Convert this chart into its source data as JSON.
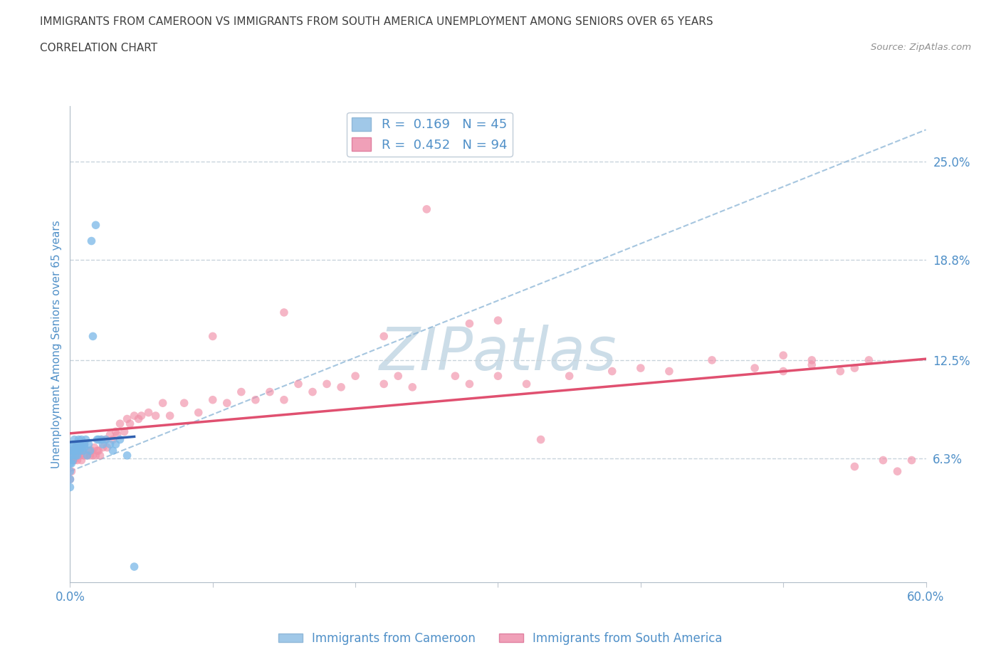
{
  "title_line1": "IMMIGRANTS FROM CAMEROON VS IMMIGRANTS FROM SOUTH AMERICA UNEMPLOYMENT AMONG SENIORS OVER 65 YEARS",
  "title_line2": "CORRELATION CHART",
  "source": "Source: ZipAtlas.com",
  "ylabel": "Unemployment Among Seniors over 65 years",
  "xlim": [
    0.0,
    0.6
  ],
  "ylim": [
    -0.015,
    0.285
  ],
  "ytick_right_vals": [
    0.063,
    0.125,
    0.188,
    0.25
  ],
  "ytick_right_labels": [
    "6.3%",
    "12.5%",
    "18.8%",
    "25.0%"
  ],
  "watermark_color": "#ccdde8",
  "blue_color": "#7ab8e8",
  "pink_color": "#f090a8",
  "blue_line_color": "#3060b0",
  "pink_line_color": "#e05070",
  "dashed_line_color": "#90b8d8",
  "grid_color": "#c8d4dc",
  "background_color": "#ffffff",
  "title_color": "#404040",
  "tick_label_color": "#5090c8",
  "legend_r1": "R =  0.169   N = 45",
  "legend_r2": "R =  0.452   N = 94",
  "legend_color1": "#a0c8e8",
  "legend_color2": "#f0a0b8",
  "cam_scatter_x": [
    0.0,
    0.0,
    0.0,
    0.0,
    0.0,
    0.001,
    0.001,
    0.001,
    0.002,
    0.002,
    0.002,
    0.003,
    0.003,
    0.004,
    0.004,
    0.005,
    0.005,
    0.005,
    0.006,
    0.006,
    0.007,
    0.007,
    0.008,
    0.008,
    0.009,
    0.01,
    0.01,
    0.011,
    0.012,
    0.013,
    0.014,
    0.015,
    0.016,
    0.018,
    0.019,
    0.02,
    0.022,
    0.023,
    0.025,
    0.028,
    0.03,
    0.032,
    0.035,
    0.04,
    0.045
  ],
  "cam_scatter_y": [
    0.05,
    0.06,
    0.065,
    0.055,
    0.045,
    0.065,
    0.07,
    0.06,
    0.068,
    0.072,
    0.062,
    0.068,
    0.075,
    0.065,
    0.07,
    0.065,
    0.072,
    0.068,
    0.07,
    0.075,
    0.068,
    0.072,
    0.07,
    0.075,
    0.068,
    0.072,
    0.07,
    0.075,
    0.065,
    0.072,
    0.068,
    0.2,
    0.14,
    0.21,
    0.075,
    0.075,
    0.075,
    0.072,
    0.075,
    0.072,
    0.068,
    0.072,
    0.075,
    0.065,
    -0.005
  ],
  "sa_scatter_x": [
    0.0,
    0.0,
    0.0,
    0.001,
    0.001,
    0.002,
    0.002,
    0.003,
    0.003,
    0.004,
    0.004,
    0.005,
    0.005,
    0.006,
    0.006,
    0.007,
    0.007,
    0.008,
    0.009,
    0.01,
    0.01,
    0.012,
    0.013,
    0.014,
    0.015,
    0.016,
    0.017,
    0.018,
    0.019,
    0.02,
    0.021,
    0.022,
    0.023,
    0.025,
    0.026,
    0.028,
    0.03,
    0.032,
    0.033,
    0.035,
    0.038,
    0.04,
    0.042,
    0.045,
    0.048,
    0.05,
    0.055,
    0.06,
    0.065,
    0.07,
    0.08,
    0.09,
    0.1,
    0.11,
    0.12,
    0.13,
    0.14,
    0.15,
    0.16,
    0.17,
    0.18,
    0.19,
    0.2,
    0.22,
    0.23,
    0.24,
    0.25,
    0.27,
    0.28,
    0.3,
    0.32,
    0.35,
    0.38,
    0.4,
    0.42,
    0.45,
    0.48,
    0.5,
    0.52,
    0.54,
    0.55,
    0.56,
    0.57,
    0.58,
    0.59,
    0.28,
    0.3,
    0.1,
    0.15,
    0.22,
    0.5,
    0.52,
    0.55,
    0.33
  ],
  "sa_scatter_y": [
    0.05,
    0.062,
    0.068,
    0.055,
    0.065,
    0.062,
    0.068,
    0.062,
    0.068,
    0.065,
    0.07,
    0.062,
    0.068,
    0.065,
    0.072,
    0.065,
    0.068,
    0.062,
    0.068,
    0.065,
    0.072,
    0.065,
    0.068,
    0.065,
    0.068,
    0.065,
    0.07,
    0.065,
    0.068,
    0.068,
    0.065,
    0.075,
    0.07,
    0.075,
    0.07,
    0.078,
    0.075,
    0.08,
    0.078,
    0.085,
    0.08,
    0.088,
    0.085,
    0.09,
    0.088,
    0.09,
    0.092,
    0.09,
    0.098,
    0.09,
    0.098,
    0.092,
    0.1,
    0.098,
    0.105,
    0.1,
    0.105,
    0.1,
    0.11,
    0.105,
    0.11,
    0.108,
    0.115,
    0.11,
    0.115,
    0.108,
    0.22,
    0.115,
    0.11,
    0.115,
    0.11,
    0.115,
    0.118,
    0.12,
    0.118,
    0.125,
    0.12,
    0.128,
    0.125,
    0.118,
    0.12,
    0.125,
    0.062,
    0.055,
    0.062,
    0.148,
    0.15,
    0.14,
    0.155,
    0.14,
    0.118,
    0.122,
    0.058,
    0.075
  ]
}
